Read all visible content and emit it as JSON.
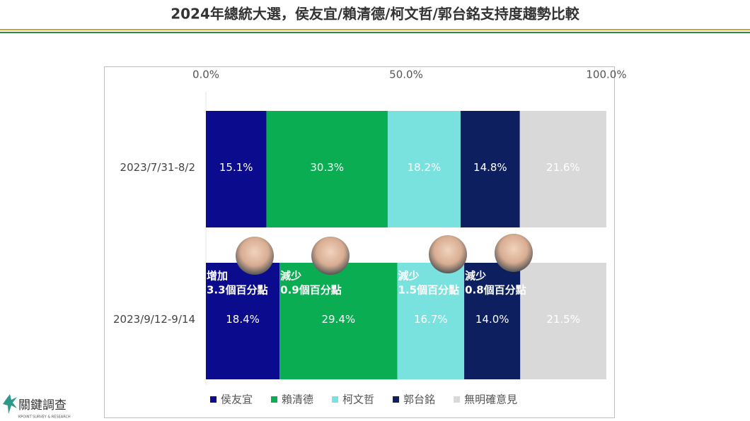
{
  "chart_data": {
    "type": "stacked-bar-horizontal",
    "title": "2024年總統大選，侯友宜/賴清德/柯文哲/郭台銘支持度趨勢比較",
    "categories": [
      "2023/7/31-8/2",
      "2023/9/12-9/14"
    ],
    "series": [
      {
        "name": "侯友宜",
        "color": "#0b0b8e",
        "values": [
          15.1,
          18.4
        ],
        "value_labels": [
          "15.1%",
          "18.4%"
        ]
      },
      {
        "name": "賴清德",
        "color": "#0aad52",
        "values": [
          30.3,
          29.4
        ],
        "value_labels": [
          "30.3%",
          "29.4%"
        ]
      },
      {
        "name": "柯文哲",
        "color": "#7ae2de",
        "values": [
          18.2,
          16.7
        ],
        "value_labels": [
          "18.2%",
          "16.7%"
        ]
      },
      {
        "name": "郭台銘",
        "color": "#0d1f5e",
        "values": [
          14.8,
          14.0
        ],
        "value_labels": [
          "14.8%",
          "14.0%"
        ]
      },
      {
        "name": "無明確意見",
        "color": "#d9d9d9",
        "values": [
          21.6,
          21.5
        ],
        "value_labels": [
          "21.6%",
          "21.5%"
        ]
      }
    ],
    "xlim": [
      0,
      100
    ],
    "xticks": [
      {
        "value": 0,
        "label": "0.0%"
      },
      {
        "value": 50,
        "label": "50.0%"
      },
      {
        "value": 100,
        "label": "100.0%"
      }
    ],
    "annotations": [
      [
        "增加",
        "3.3個百分點"
      ],
      [
        "減少",
        "0.9個百分點"
      ],
      [
        "減少",
        "1.5個百分點"
      ],
      [
        "減少",
        "0.8個百分點"
      ]
    ],
    "legend": "bottom"
  },
  "logo": {
    "name": "關鍵調查",
    "tagline": "KPOINT SURVEY & RESEARCH"
  }
}
